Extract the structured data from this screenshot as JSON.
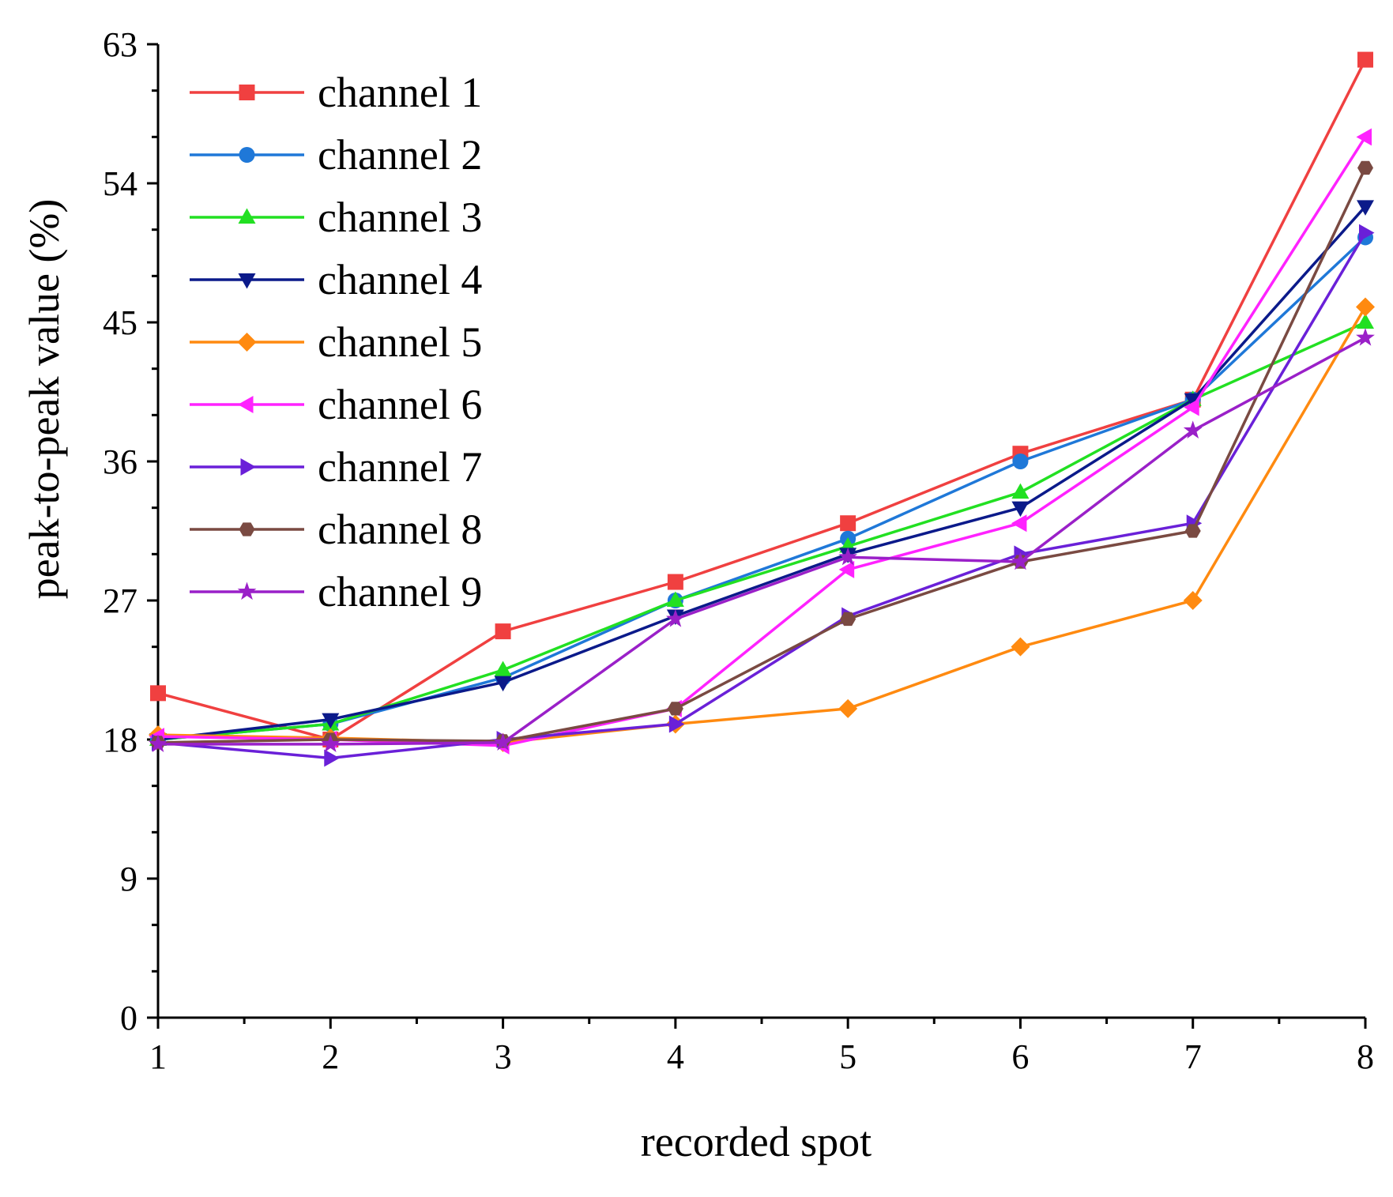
{
  "chart_data": {
    "type": "line",
    "title": "",
    "xlabel": "recorded spot",
    "ylabel": "peak-to-peak value (%)",
    "x": [
      1,
      2,
      3,
      4,
      5,
      6,
      7,
      8
    ],
    "xticks": [
      "1",
      "2",
      "3",
      "4",
      "5",
      "6",
      "7",
      "8"
    ],
    "yticks": [
      "0",
      "9",
      "18",
      "27",
      "36",
      "45",
      "54",
      "63"
    ],
    "xlim": [
      1,
      8
    ],
    "ylim": [
      0,
      63
    ],
    "grid": false,
    "legend_position": "top-left",
    "series": [
      {
        "name": "channel 1",
        "color": "#f04040",
        "marker": "square",
        "values": [
          21.0,
          18.0,
          25.0,
          28.2,
          32.0,
          36.5,
          40.0,
          62.0
        ]
      },
      {
        "name": "channel 2",
        "color": "#1f78d8",
        "marker": "circle",
        "values": [
          18.0,
          19.0,
          22.0,
          27.0,
          31.0,
          36.0,
          40.0,
          50.5
        ]
      },
      {
        "name": "channel 3",
        "color": "#22e022",
        "marker": "triangle-up",
        "values": [
          18.0,
          19.0,
          22.5,
          27.0,
          30.5,
          34.0,
          40.0,
          45.0
        ]
      },
      {
        "name": "channel 4",
        "color": "#0b1a8a",
        "marker": "triangle-down",
        "values": [
          18.0,
          19.3,
          21.7,
          26.0,
          30.0,
          33.0,
          40.0,
          52.5
        ]
      },
      {
        "name": "channel 5",
        "color": "#ff8a10",
        "marker": "diamond",
        "values": [
          18.3,
          18.1,
          17.8,
          19.0,
          20.0,
          24.0,
          27.0,
          46.0
        ]
      },
      {
        "name": "channel 6",
        "color": "#ff22ff",
        "marker": "triangle-left",
        "values": [
          18.2,
          18.0,
          17.6,
          20.0,
          29.0,
          32.0,
          39.5,
          57.0
        ]
      },
      {
        "name": "channel 7",
        "color": "#6a20d8",
        "marker": "triangle-right",
        "values": [
          17.8,
          16.8,
          18.0,
          19.0,
          26.0,
          30.0,
          32.0,
          50.8
        ]
      },
      {
        "name": "channel 8",
        "color": "#7a4a42",
        "marker": "hexagon",
        "values": [
          17.8,
          18.0,
          17.9,
          20.0,
          25.8,
          29.5,
          31.5,
          55.0
        ]
      },
      {
        "name": "channel 9",
        "color": "#9a20c8",
        "marker": "star",
        "values": [
          17.7,
          17.7,
          17.8,
          25.8,
          29.8,
          29.5,
          38.0,
          44.0
        ]
      }
    ]
  }
}
